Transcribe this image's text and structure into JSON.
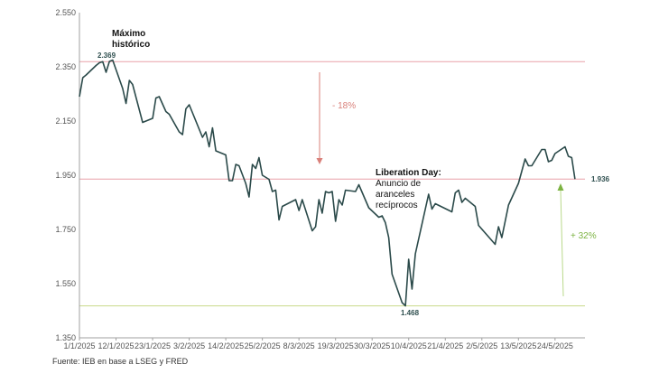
{
  "chart_data": {
    "type": "line",
    "ylim": [
      1350,
      2550
    ],
    "yticks": [
      "2.550",
      "2.350",
      "2.150",
      "1.950",
      "1.750",
      "1.550",
      "1.350"
    ],
    "xticks": [
      "1/1/2025",
      "12/1/2025",
      "23/1/2025",
      "3/2/2025",
      "14/2/2025",
      "25/2/2025",
      "8/3/2025",
      "19/3/2025",
      "30/3/2025",
      "10/4/2025",
      "21/4/2025",
      "2/5/2025",
      "13/5/2025",
      "24/5/2025"
    ],
    "x_start": "1/1/2025",
    "x_end": "2/6/2025",
    "series": [
      {
        "color": "#2b4a4a",
        "points": [
          [
            "1/1/2025",
            2240
          ],
          [
            "2/1/2025",
            2310
          ],
          [
            "3/1/2025",
            2320
          ],
          [
            "6/1/2025",
            2355
          ],
          [
            "7/1/2025",
            2365
          ],
          [
            "8/1/2025",
            2369
          ],
          [
            "9/1/2025",
            2330
          ],
          [
            "10/1/2025",
            2370
          ],
          [
            "11/1/2025",
            2375
          ],
          [
            "14/1/2025",
            2270
          ],
          [
            "15/1/2025",
            2215
          ],
          [
            "16/1/2025",
            2300
          ],
          [
            "17/1/2025",
            2285
          ],
          [
            "20/1/2025",
            2145
          ],
          [
            "23/1/2025",
            2160
          ],
          [
            "24/1/2025",
            2235
          ],
          [
            "25/1/2025",
            2240
          ],
          [
            "27/1/2025",
            2185
          ],
          [
            "28/1/2025",
            2175
          ],
          [
            "31/1/2025",
            2110
          ],
          [
            "1/2/2025",
            2100
          ],
          [
            "2/2/2025",
            2195
          ],
          [
            "3/2/2025",
            2210
          ],
          [
            "4/2/2025",
            2180
          ],
          [
            "7/2/2025",
            2090
          ],
          [
            "8/2/2025",
            2110
          ],
          [
            "9/2/2025",
            2055
          ],
          [
            "10/2/2025",
            2125
          ],
          [
            "11/2/2025",
            2040
          ],
          [
            "14/2/2025",
            2025
          ],
          [
            "15/2/2025",
            1930
          ],
          [
            "16/2/2025",
            1930
          ],
          [
            "17/2/2025",
            1990
          ],
          [
            "18/2/2025",
            1985
          ],
          [
            "20/2/2025",
            1920
          ],
          [
            "21/2/2025",
            1870
          ],
          [
            "22/2/2025",
            1990
          ],
          [
            "23/2/2025",
            1975
          ],
          [
            "24/2/2025",
            2015
          ],
          [
            "25/2/2025",
            1950
          ],
          [
            "27/2/2025",
            1935
          ],
          [
            "28/2/2025",
            1890
          ],
          [
            "1/3/2025",
            1895
          ],
          [
            "2/3/2025",
            1785
          ],
          [
            "3/3/2025",
            1835
          ],
          [
            "7/3/2025",
            1860
          ],
          [
            "8/3/2025",
            1820
          ],
          [
            "9/3/2025",
            1860
          ],
          [
            "12/3/2025",
            1745
          ],
          [
            "13/3/2025",
            1760
          ],
          [
            "14/3/2025",
            1860
          ],
          [
            "15/3/2025",
            1810
          ],
          [
            "16/3/2025",
            1890
          ],
          [
            "17/3/2025",
            1885
          ],
          [
            "18/3/2025",
            1890
          ],
          [
            "19/3/2025",
            1780
          ],
          [
            "20/3/2025",
            1860
          ],
          [
            "21/3/2025",
            1840
          ],
          [
            "22/3/2025",
            1895
          ],
          [
            "25/3/2025",
            1890
          ],
          [
            "26/3/2025",
            1915
          ],
          [
            "29/3/2025",
            1830
          ],
          [
            "1/4/2025",
            1795
          ],
          [
            "2/4/2025",
            1800
          ],
          [
            "3/4/2025",
            1775
          ],
          [
            "4/4/2025",
            1720
          ],
          [
            "5/4/2025",
            1585
          ],
          [
            "8/4/2025",
            1480
          ],
          [
            "9/4/2025",
            1468
          ],
          [
            "10/4/2025",
            1640
          ],
          [
            "11/4/2025",
            1530
          ],
          [
            "12/4/2025",
            1660
          ],
          [
            "16/4/2025",
            1880
          ],
          [
            "17/4/2025",
            1825
          ],
          [
            "18/4/2025",
            1845
          ],
          [
            "23/4/2025",
            1815
          ],
          [
            "24/4/2025",
            1885
          ],
          [
            "25/4/2025",
            1895
          ],
          [
            "26/4/2025",
            1850
          ],
          [
            "27/4/2025",
            1865
          ],
          [
            "30/4/2025",
            1835
          ],
          [
            "1/5/2025",
            1765
          ],
          [
            "6/5/2025",
            1695
          ],
          [
            "7/5/2025",
            1760
          ],
          [
            "8/5/2025",
            1720
          ],
          [
            "10/5/2025",
            1840
          ],
          [
            "13/5/2025",
            1920
          ],
          [
            "14/5/2025",
            1965
          ],
          [
            "15/5/2025",
            2010
          ],
          [
            "16/5/2025",
            1985
          ],
          [
            "17/5/2025",
            1985
          ],
          [
            "20/5/2025",
            2045
          ],
          [
            "21/5/2025",
            2045
          ],
          [
            "22/5/2025",
            2000
          ],
          [
            "23/5/2025",
            2005
          ],
          [
            "24/5/2025",
            2030
          ],
          [
            "27/5/2025",
            2055
          ],
          [
            "28/5/2025",
            2020
          ],
          [
            "29/5/2025",
            2015
          ],
          [
            "30/5/2025",
            1936
          ]
        ]
      }
    ],
    "reference_lines": [
      {
        "y": 2369,
        "color": "#e8a0a8"
      },
      {
        "y": 1936,
        "color": "#e8a0a8"
      },
      {
        "y": 1468,
        "color": "#c9d98a"
      }
    ],
    "annotations": {
      "max_label": [
        "Máximo",
        "histórico"
      ],
      "max_value": "2.369",
      "liberation_title": "Liberation Day:",
      "liberation_text": [
        "Anuncio de",
        "aranceles",
        "recíprocos"
      ],
      "min_value": "1.468",
      "last_value": "1.936",
      "drop_pct": "- 18%",
      "rise_pct": "+ 32%"
    },
    "colors": {
      "line": "#2b4a4a",
      "drop": "#d9807a",
      "rise": "#7cb342",
      "axis": "#a0a0a0"
    }
  },
  "source": "Fuente: IEB en base a LSEG y FRED"
}
